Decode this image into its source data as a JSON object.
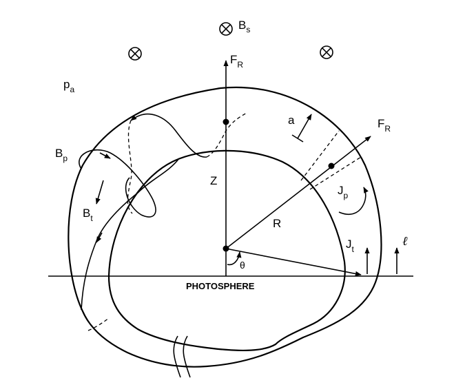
{
  "labels": {
    "b_s": "B",
    "b_s_sub": "s",
    "f_r_top": "F",
    "f_r_top_sub": "R",
    "f_r_right": "F",
    "f_r_right_sub": "R",
    "p_a": "p",
    "p_a_sub": "a",
    "a": "a",
    "b_p": "B",
    "b_p_sub": "p",
    "b_t": "B",
    "b_t_sub": "t",
    "z": "Z",
    "r": "R",
    "j_p": "J",
    "j_p_sub": "p",
    "j_t": "J",
    "j_t_sub": "t",
    "ell": "ℓ",
    "theta": "θ",
    "photosphere": "PHOTOSPHERE"
  },
  "icons": {
    "field_into_page": "circled-times-icon"
  }
}
